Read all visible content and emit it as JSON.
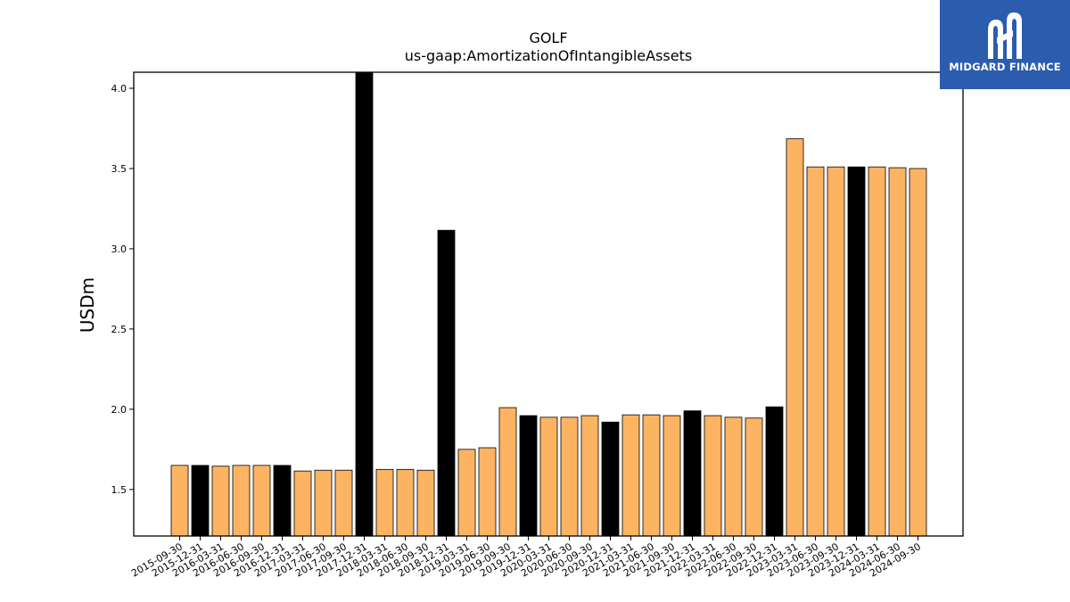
{
  "logo": {
    "brand": "MIDGARD FINANCE"
  },
  "chart_data": {
    "type": "bar",
    "title": "GOLF",
    "subtitle": "us-gaap:AmortizationOfIntangibleAssets",
    "ylabel": "USDm",
    "xlabel": "",
    "ylim": [
      1.21,
      4.1
    ],
    "yticks": [
      "1.5",
      "2.0",
      "2.5",
      "3.0",
      "3.5",
      "4.0"
    ],
    "grid": false,
    "colors": {
      "quarter": "#fdb462",
      "fiscal_year_end": "#000000"
    },
    "categories": [
      "2015-09-30",
      "2015-12-31",
      "2016-03-31",
      "2016-06-30",
      "2016-09-30",
      "2016-12-31",
      "2017-03-31",
      "2017-06-30",
      "2017-09-30",
      "2017-12-31",
      "2018-03-31",
      "2018-06-30",
      "2018-09-30",
      "2018-12-31",
      "2019-03-31",
      "2019-06-30",
      "2019-09-30",
      "2019-12-31",
      "2020-03-31",
      "2020-06-30",
      "2020-09-30",
      "2020-12-31",
      "2021-03-31",
      "2021-06-30",
      "2021-09-30",
      "2021-12-31",
      "2022-03-31",
      "2022-06-30",
      "2022-09-30",
      "2022-12-31",
      "2023-03-31",
      "2023-06-30",
      "2023-09-30",
      "2023-12-31",
      "2024-03-31",
      "2024-06-30",
      "2024-09-30"
    ],
    "values": [
      1.65,
      1.65,
      1.645,
      1.65,
      1.65,
      1.65,
      1.615,
      1.62,
      1.62,
      4.1,
      1.625,
      1.625,
      1.62,
      3.115,
      1.75,
      1.76,
      2.01,
      1.96,
      1.95,
      1.95,
      1.96,
      1.92,
      1.965,
      1.965,
      1.96,
      1.99,
      1.96,
      1.95,
      1.945,
      2.015,
      3.685,
      3.51,
      3.51,
      3.51,
      3.51,
      3.505,
      3.5
    ],
    "highlight": [
      false,
      true,
      false,
      false,
      false,
      true,
      false,
      false,
      false,
      true,
      false,
      false,
      false,
      true,
      false,
      false,
      false,
      true,
      false,
      false,
      false,
      true,
      false,
      false,
      false,
      true,
      false,
      false,
      false,
      true,
      false,
      false,
      false,
      true,
      false,
      false,
      false
    ]
  }
}
